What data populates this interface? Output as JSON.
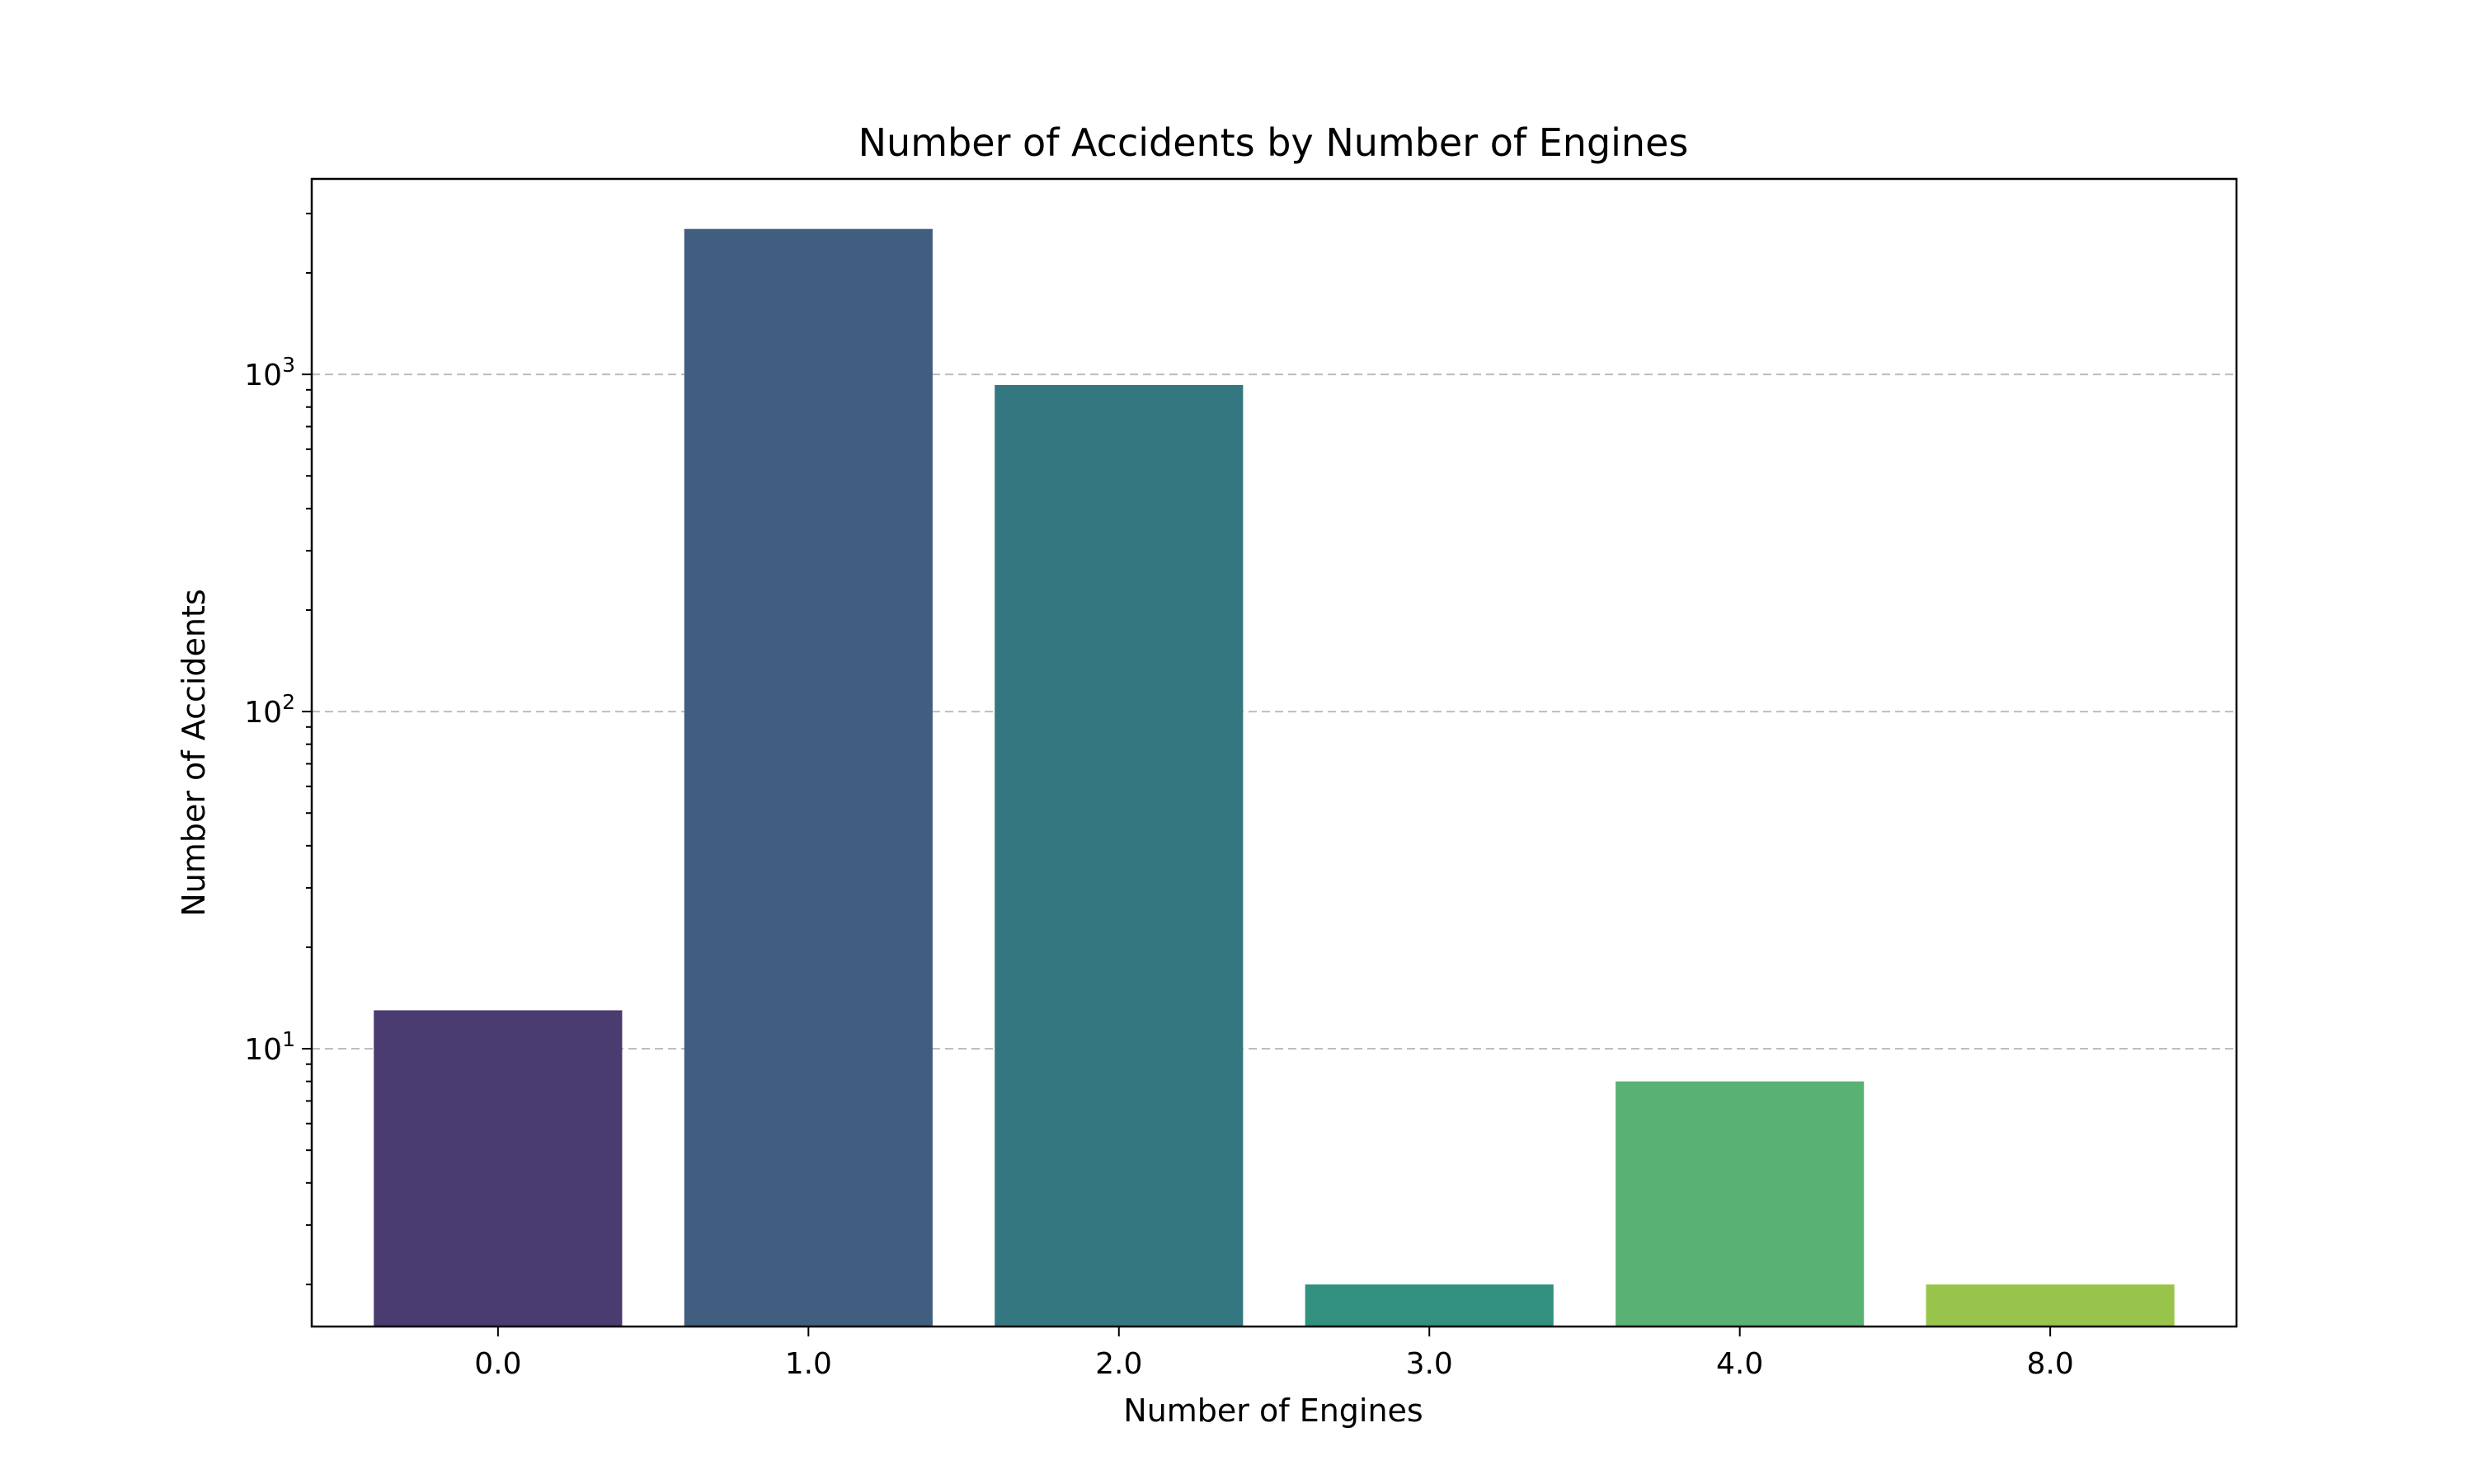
{
  "chart_data": {
    "type": "bar",
    "title": "Number of Accidents by Number of Engines",
    "xlabel": "Number of Engines",
    "ylabel": "Number of Accidents",
    "categories": [
      "0.0",
      "1.0",
      "2.0",
      "3.0",
      "4.0",
      "8.0"
    ],
    "values": [
      13,
      2700,
      930,
      2,
      8,
      2
    ],
    "colors": [
      "#4a3b70",
      "#415e80",
      "#357780",
      "#31917e",
      "#5ab174",
      "#98c44c"
    ],
    "yscale": "log",
    "ylim": [
      1.5,
      3800
    ],
    "yticks": [
      {
        "value": 10,
        "base": "10",
        "exp": "1"
      },
      {
        "value": 100,
        "base": "10",
        "exp": "2"
      },
      {
        "value": 1000,
        "base": "10",
        "exp": "3"
      }
    ],
    "grid": "y-major-dashed",
    "legend": "none"
  }
}
